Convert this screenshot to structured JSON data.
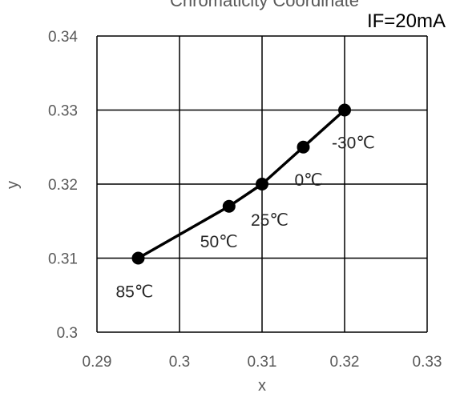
{
  "chart_data": {
    "type": "line",
    "title": "Chromaticity Coordinate",
    "condition": "IF=20mA",
    "xlabel": "x",
    "ylabel": "y",
    "xlim": [
      0.29,
      0.33
    ],
    "ylim": [
      0.3,
      0.34
    ],
    "xticks": [
      "0.29",
      "0.3",
      "0.31",
      "0.32",
      "0.33"
    ],
    "yticks": [
      "0.3",
      "0.31",
      "0.32",
      "0.33",
      "0.34"
    ],
    "grid": true,
    "series": [
      {
        "points": [
          {
            "x": 0.295,
            "y": 0.31,
            "label": "85℃"
          },
          {
            "x": 0.306,
            "y": 0.317,
            "label": "50℃"
          },
          {
            "x": 0.31,
            "y": 0.32,
            "label": "25℃"
          },
          {
            "x": 0.315,
            "y": 0.325,
            "label": "0℃"
          },
          {
            "x": 0.32,
            "y": 0.33,
            "label": "-30℃"
          }
        ]
      }
    ]
  }
}
